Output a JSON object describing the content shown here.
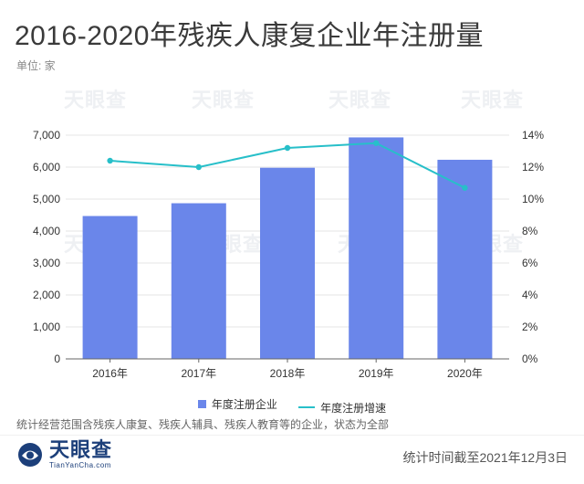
{
  "header": {
    "title": "2016-2020年残疾人康复企业年注册量",
    "unit": "单位: 家"
  },
  "watermark": {
    "text": "天眼查"
  },
  "colors": {
    "bar": "#6a86ea",
    "line": "#27bfc9",
    "grid": "#e6e6e6",
    "axis": "#333333"
  },
  "chart_data": {
    "type": "bar",
    "title": "2016-2020年残疾人康复企业年注册量",
    "categories": [
      "2016年",
      "2017年",
      "2018年",
      "2019年",
      "2020年"
    ],
    "series": [
      {
        "name": "年度注册企业",
        "type": "bar",
        "axis": "left",
        "values": [
          4470,
          4870,
          5980,
          6930,
          6230
        ]
      },
      {
        "name": "年度注册增速",
        "type": "line",
        "axis": "right",
        "values": [
          12.4,
          12.0,
          13.2,
          13.5,
          10.7
        ]
      }
    ],
    "y_left": {
      "min": 0,
      "max": 7000,
      "ticks": [
        0,
        1000,
        2000,
        3000,
        4000,
        5000,
        6000,
        7000
      ],
      "tick_labels": [
        "0",
        "1,000",
        "2,000",
        "3,000",
        "4,000",
        "5,000",
        "6,000",
        "7,000"
      ]
    },
    "y_right": {
      "min": 0,
      "max": 14,
      "ticks": [
        0,
        2,
        4,
        6,
        8,
        10,
        12,
        14
      ],
      "tick_labels": [
        "0%",
        "2%",
        "4%",
        "6%",
        "8%",
        "10%",
        "12%",
        "14%"
      ]
    },
    "legend": [
      "年度注册企业",
      "年度注册增速"
    ],
    "legend_position": "bottom",
    "grid": true
  },
  "note": "统计经营范围含残疾人康复、残疾人辅具、残疾人教育等的企业，状态为全部",
  "footer": {
    "brand": "天眼查",
    "brand_url": "TianYanCha.com",
    "stat_date": "统计时间截至2021年12月3日"
  }
}
